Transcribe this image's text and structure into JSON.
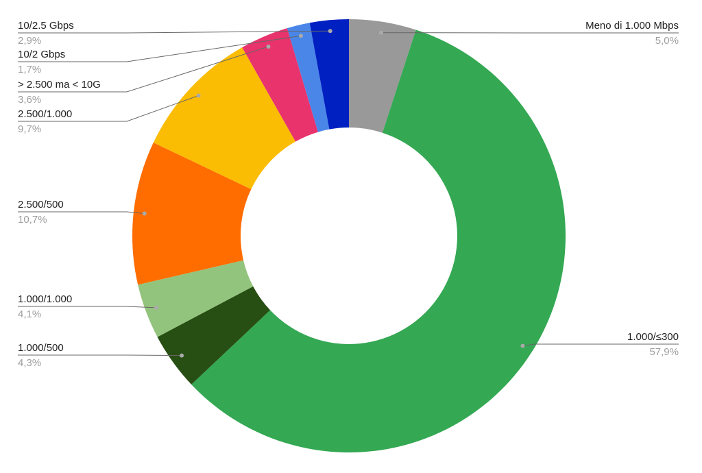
{
  "chart_data": {
    "type": "donut",
    "categories": [
      "Meno di 1.000 Mbps",
      "1.000/≤300",
      "1.000/500",
      "1.000/1.000",
      "2.500/500",
      "2.500/1.000",
      "> 2.500 ma < 10G",
      "10/2 Gbps",
      "10/2.5 Gbps"
    ],
    "values": [
      5.0,
      57.9,
      4.3,
      4.1,
      10.7,
      9.7,
      3.6,
      1.7,
      2.9
    ],
    "value_labels": [
      "5,0%",
      "57,9%",
      "4,3%",
      "4,1%",
      "10,7%",
      "9,7%",
      "3,6%",
      "1,7%",
      "2,9%"
    ],
    "colors": [
      "#999999",
      "#34a853",
      "#274e13",
      "#93c47d",
      "#ff6d01",
      "#fbbc04",
      "#e8336d",
      "#4a86e8",
      "#0020c2"
    ]
  }
}
